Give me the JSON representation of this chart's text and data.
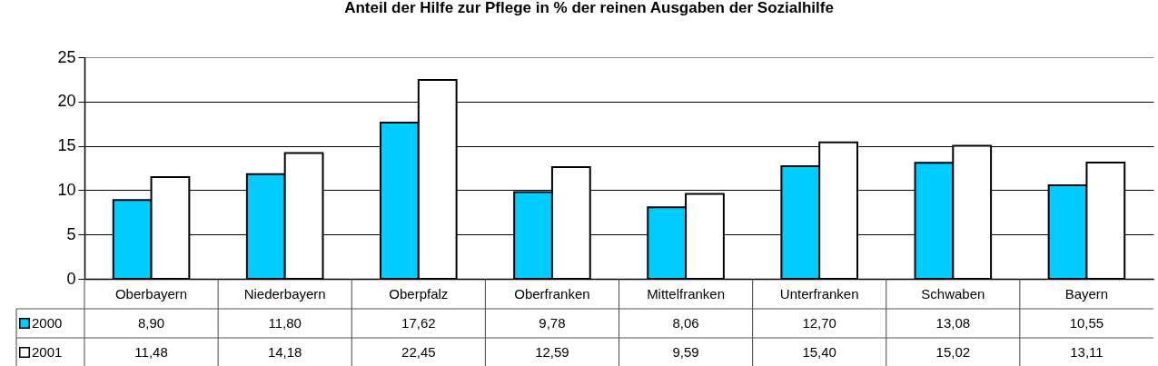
{
  "chart_data": {
    "type": "bar",
    "title": "Anteil der Hilfe zur Pflege in % der reinen Ausgaben der Sozialhilfe",
    "categories": [
      "Oberbayern",
      "Niederbayern",
      "Oberpfalz",
      "Oberfranken",
      "Mittelfranken",
      "Unterfranken",
      "Schwaben",
      "Bayern"
    ],
    "series": [
      {
        "name": "2000",
        "color": "#00ccff",
        "values": [
          8.9,
          11.8,
          17.62,
          9.78,
          8.06,
          12.7,
          13.08,
          10.55
        ],
        "value_labels": [
          "8,90",
          "11,80",
          "17,62",
          "9,78",
          "8,06",
          "12,70",
          "13,08",
          "10,55"
        ]
      },
      {
        "name": "2001",
        "color": "#ffffff",
        "values": [
          11.48,
          14.18,
          22.45,
          12.59,
          9.59,
          15.4,
          15.02,
          13.11
        ],
        "value_labels": [
          "11,48",
          "14,18",
          "22,45",
          "12,59",
          "9,59",
          "15,40",
          "15,02",
          "13,11"
        ]
      }
    ],
    "ylim": [
      0,
      25
    ],
    "yticks": [
      0,
      5,
      10,
      15,
      20,
      25
    ],
    "grid": "y",
    "legend": "bottom left"
  }
}
